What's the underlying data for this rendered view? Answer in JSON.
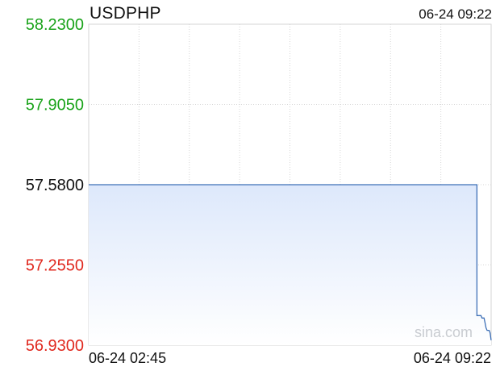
{
  "symbol": "USDPHP",
  "timestamp": "06-24 09:22",
  "watermark": "sina.com",
  "colors": {
    "line": "#3d6fb6",
    "fill_top": "#dde8fb",
    "fill_bottom": "#ffffff",
    "grid": "#d6d6d6",
    "tick_up": "#1aa31a",
    "tick_base": "#111111",
    "tick_down": "#e0281e"
  },
  "chart_data": {
    "type": "area",
    "title": "USDPHP",
    "xlabel": "",
    "ylabel": "",
    "ylim": [
      56.93,
      58.23
    ],
    "reference_value": 57.58,
    "y_ticks": [
      "58.2300",
      "57.9050",
      "57.5800",
      "57.2550",
      "56.9300"
    ],
    "x_ticks": [
      "06-24 02:45",
      "06-24 09:22"
    ],
    "grid": true,
    "series": [
      {
        "x": [
          "02:45",
          "09:00",
          "09:08",
          "09:08",
          "09:10",
          "09:12",
          "09:13",
          "09:15",
          "09:16",
          "09:17",
          "09:18",
          "09:20",
          "09:21",
          "09:22"
        ],
        "values": [
          57.58,
          57.58,
          57.58,
          57.05,
          57.05,
          57.05,
          57.04,
          57.04,
          57.02,
          57.0,
          56.99,
          56.99,
          56.98,
          56.95
        ]
      }
    ]
  }
}
